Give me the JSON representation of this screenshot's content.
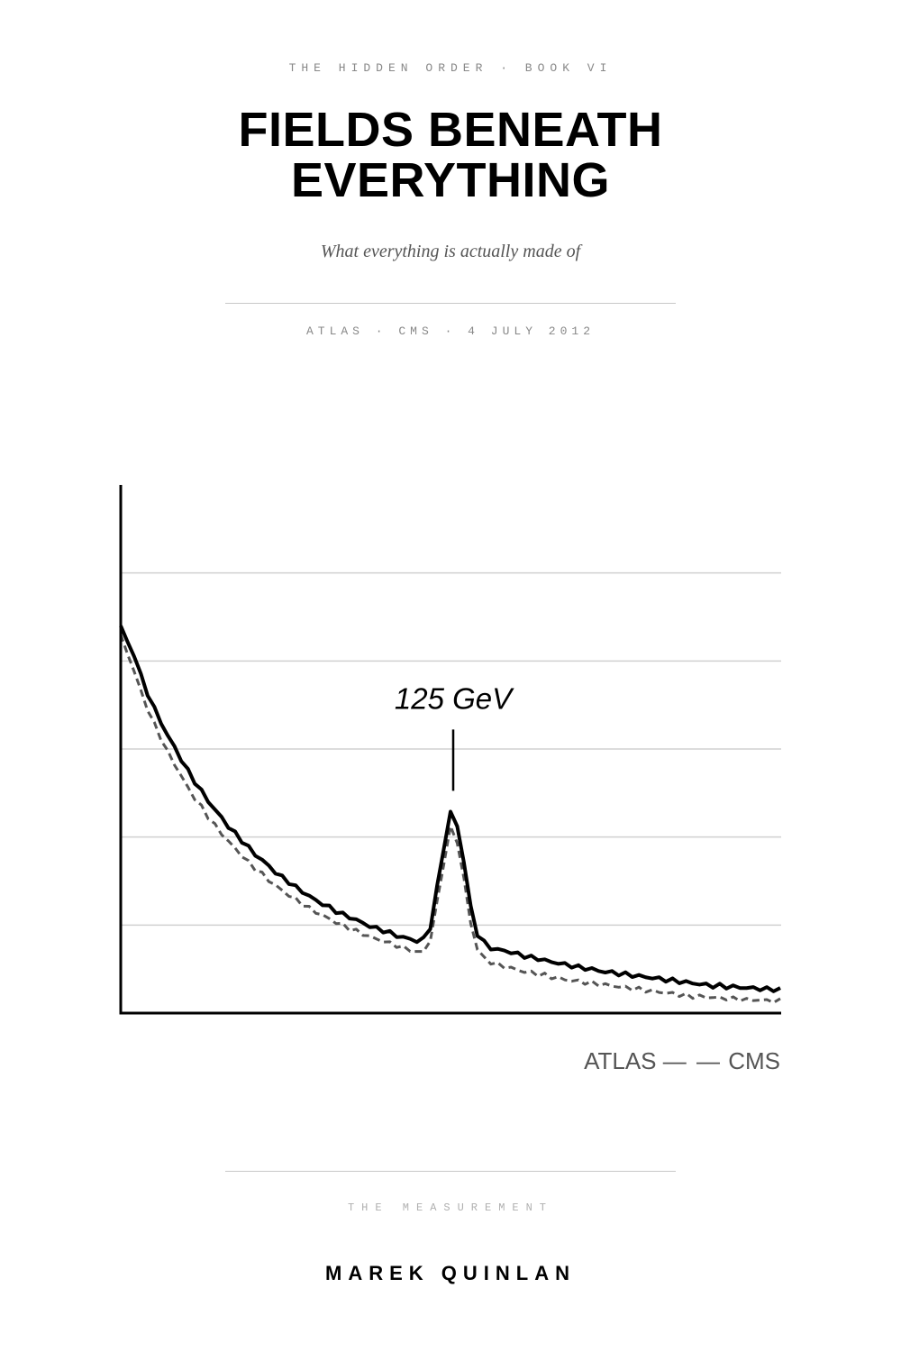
{
  "cover": {
    "series_label": "THE HIDDEN ORDER · BOOK VI",
    "title_line1": "FIELDS BENEATH",
    "title_line2": "EVERYTHING",
    "subtitle": "What everything is actually made of",
    "dateline": "ATLAS · CMS · 4 JULY 2012",
    "section_label": "THE MEASUREMENT",
    "author": "MAREK QUINLAN"
  },
  "colors": {
    "atlas_line": "#000000",
    "cms_line": "#555555",
    "gridline": "#d0d0d0"
  },
  "chart_data": {
    "type": "line",
    "title": "",
    "xlabel": "",
    "ylabel": "",
    "grid": true,
    "legend": {
      "placement": "bottom-right",
      "entries": [
        "ATLAS",
        "CMS"
      ],
      "separator": "— —"
    },
    "annotations": [
      {
        "text": "125 GeV"
      }
    ],
    "ylim": [
      0,
      6
    ],
    "peak_index": 49,
    "series": [
      {
        "name": "ATLAS",
        "style": "solid",
        "values": [
          4.4,
          4.22,
          4.05,
          3.83,
          3.63,
          3.46,
          3.3,
          3.15,
          3.02,
          2.88,
          2.75,
          2.63,
          2.52,
          2.41,
          2.31,
          2.22,
          2.12,
          2.04,
          1.96,
          1.88,
          1.8,
          1.74,
          1.67,
          1.6,
          1.54,
          1.49,
          1.43,
          1.38,
          1.33,
          1.28,
          1.24,
          1.2,
          1.16,
          1.12,
          1.09,
          1.06,
          1.02,
          0.99,
          0.96,
          0.94,
          0.91,
          0.88,
          0.86,
          0.84,
          0.82,
          0.84,
          0.98,
          1.42,
          1.88,
          2.28,
          2.12,
          1.72,
          1.2,
          0.9,
          0.8,
          0.74,
          0.72,
          0.71,
          0.69,
          0.67,
          0.65,
          0.63,
          0.62,
          0.6,
          0.58,
          0.57,
          0.55,
          0.54,
          0.52,
          0.51,
          0.5,
          0.48,
          0.47,
          0.46,
          0.45,
          0.44,
          0.43,
          0.42,
          0.41,
          0.4,
          0.39,
          0.38,
          0.37,
          0.36,
          0.35,
          0.34,
          0.33,
          0.32,
          0.31,
          0.31,
          0.3,
          0.3,
          0.29,
          0.29,
          0.28,
          0.28,
          0.27,
          0.27,
          0.27
        ]
      },
      {
        "name": "CMS",
        "style": "dashed",
        "values": [
          4.3,
          4.08,
          3.88,
          3.66,
          3.45,
          3.28,
          3.12,
          2.96,
          2.83,
          2.69,
          2.56,
          2.44,
          2.34,
          2.23,
          2.13,
          2.04,
          1.95,
          1.87,
          1.79,
          1.71,
          1.64,
          1.58,
          1.51,
          1.45,
          1.39,
          1.34,
          1.29,
          1.24,
          1.19,
          1.15,
          1.11,
          1.07,
          1.03,
          1.0,
          0.96,
          0.93,
          0.9,
          0.87,
          0.84,
          0.82,
          0.79,
          0.77,
          0.74,
          0.72,
          0.69,
          0.7,
          0.83,
          1.25,
          1.71,
          2.1,
          1.95,
          1.52,
          1.02,
          0.73,
          0.62,
          0.58,
          0.55,
          0.53,
          0.51,
          0.49,
          0.47,
          0.46,
          0.44,
          0.43,
          0.41,
          0.4,
          0.38,
          0.37,
          0.36,
          0.35,
          0.34,
          0.33,
          0.32,
          0.31,
          0.3,
          0.29,
          0.28,
          0.27,
          0.26,
          0.25,
          0.24,
          0.23,
          0.22,
          0.21,
          0.2,
          0.19,
          0.19,
          0.18,
          0.18,
          0.17,
          0.17,
          0.16,
          0.16,
          0.15,
          0.15,
          0.15,
          0.14,
          0.14,
          0.14
        ]
      }
    ]
  }
}
